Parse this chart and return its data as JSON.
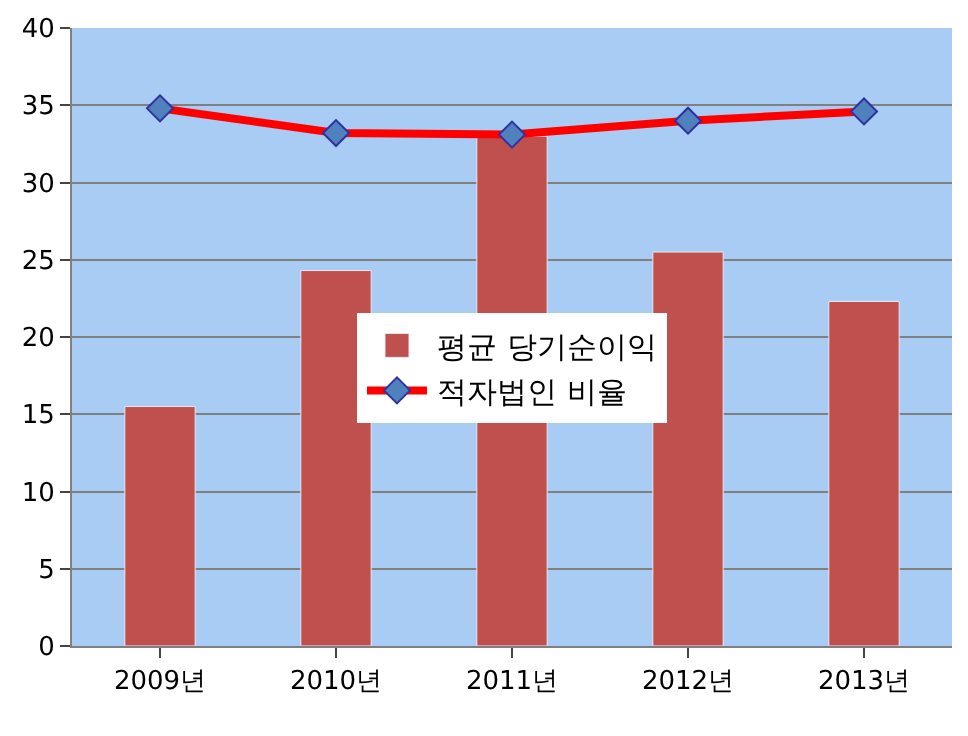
{
  "chart_data": {
    "type": "bar",
    "categories": [
      "2009년",
      "2010년",
      "2011년",
      "2012년",
      "2013년"
    ],
    "series": [
      {
        "name": "평균 당기순이익",
        "color": "#c0504d",
        "values": [
          15.5,
          24.3,
          33.0,
          25.5,
          22.3
        ]
      },
      {
        "name": "적자법인 비율",
        "type": "line",
        "color": "#ff0000",
        "marker": "diamond",
        "values": [
          34.8,
          33.2,
          33.1,
          34.0,
          34.6
        ]
      }
    ],
    "ylim": [
      0,
      40
    ],
    "yticks": [
      0,
      5,
      10,
      15,
      20,
      25,
      30,
      35,
      40
    ],
    "grid": "y",
    "legend": "center"
  }
}
